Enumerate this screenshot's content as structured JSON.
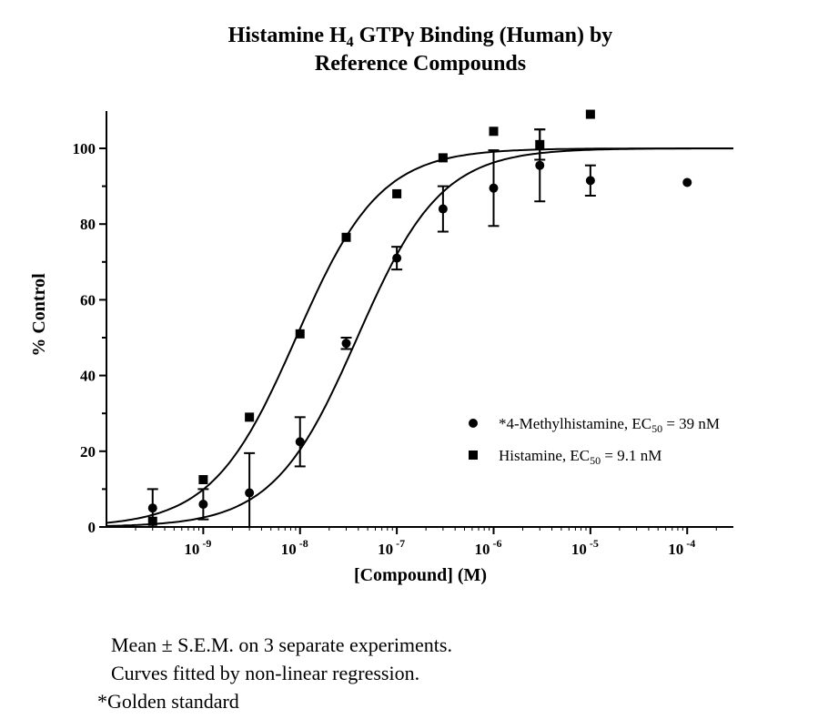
{
  "chart_data": {
    "type": "scatter",
    "title_line1_pre": "Histamine H",
    "title_line1_sub": "4",
    "title_line1_post": " GTPγ Binding (Human) by",
    "title_line2": "Reference Compounds",
    "xlabel": "[Compound] (M)",
    "ylabel": "% Control",
    "x_scale": "log",
    "xlim": [
      1e-10,
      0.0003
    ],
    "ylim": [
      0,
      110
    ],
    "y_ticks": [
      0,
      20,
      40,
      60,
      80,
      100
    ],
    "x_ticks": [
      {
        "value": 1e-09,
        "base": "10",
        "exp": "-9"
      },
      {
        "value": 1e-08,
        "base": "10",
        "exp": "-8"
      },
      {
        "value": 1e-07,
        "base": "10",
        "exp": "-7"
      },
      {
        "value": 1e-06,
        "base": "10",
        "exp": "-6"
      },
      {
        "value": 1e-05,
        "base": "10",
        "exp": "-5"
      },
      {
        "value": 0.0001,
        "base": "10",
        "exp": "-4"
      }
    ],
    "grid": false,
    "legend_position": "center-right",
    "series": [
      {
        "name_pre": "*4-Methylhistamine, EC",
        "name_sub": "50",
        "name_post": " = 39 nM",
        "marker": "circle",
        "ec50": 3.9e-08,
        "points": [
          {
            "x": 3e-10,
            "y": 5,
            "err": 5
          },
          {
            "x": 1e-09,
            "y": 6,
            "err": 4
          },
          {
            "x": 3e-09,
            "y": 9,
            "err": 10.5
          },
          {
            "x": 1e-08,
            "y": 22.5,
            "err": 6.5
          },
          {
            "x": 3e-08,
            "y": 48.5,
            "err": 1.5
          },
          {
            "x": 1e-07,
            "y": 71,
            "err": 3
          },
          {
            "x": 3e-07,
            "y": 84,
            "err": 6
          },
          {
            "x": 1e-06,
            "y": 89.5,
            "err": 10
          },
          {
            "x": 3e-06,
            "y": 95.5,
            "err": 9.5
          },
          {
            "x": 1e-05,
            "y": 91.5,
            "err": 4
          },
          {
            "x": 0.0001,
            "y": 91,
            "err": 0
          }
        ]
      },
      {
        "name_pre": "Histamine, EC",
        "name_sub": "50",
        "name_post": " = 9.1 nM",
        "marker": "square",
        "ec50": 9.1e-09,
        "points": [
          {
            "x": 3e-10,
            "y": 1.5,
            "err": 0
          },
          {
            "x": 1e-09,
            "y": 12.5,
            "err": 0
          },
          {
            "x": 3e-09,
            "y": 29,
            "err": 0
          },
          {
            "x": 1e-08,
            "y": 51,
            "err": 0
          },
          {
            "x": 3e-08,
            "y": 76.5,
            "err": 0
          },
          {
            "x": 1e-07,
            "y": 88,
            "err": 0
          },
          {
            "x": 3e-07,
            "y": 97.5,
            "err": 0
          },
          {
            "x": 1e-06,
            "y": 104.5,
            "err": 0
          },
          {
            "x": 3e-06,
            "y": 101,
            "err": 4
          },
          {
            "x": 1e-05,
            "y": 109,
            "err": 0
          }
        ]
      }
    ]
  },
  "notes": {
    "line1": "Mean ± S.E.M. on 3 separate experiments.",
    "line2": "Curves fitted by non-linear regression.",
    "line3": "*Golden standard"
  }
}
